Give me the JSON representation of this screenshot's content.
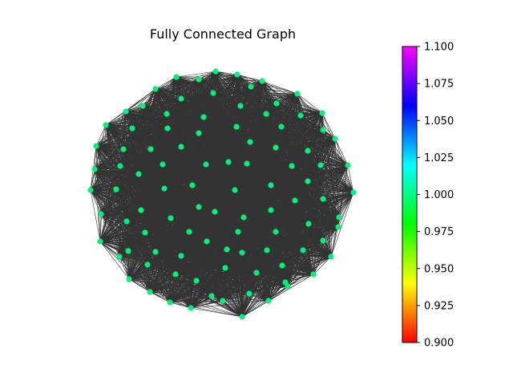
{
  "title": "Fully Connected Graph",
  "node_color": "#00f07a",
  "edge_color": "#333333",
  "colorbar": {
    "min": 0.9,
    "max": 1.1,
    "ticks": [
      "1.100",
      "1.075",
      "1.050",
      "1.025",
      "1.000",
      "0.975",
      "0.950",
      "0.925",
      "0.900"
    ],
    "colormap_stops": [
      "#ff0000",
      "#ffff00",
      "#00ff00",
      "#00ffff",
      "#0000ff",
      "#ff00ff"
    ]
  },
  "chart_data": {
    "type": "scatter",
    "title": "Fully Connected Graph",
    "graph": "complete",
    "node_count": 100,
    "node_value": 1.0,
    "color_scale_range": [
      0.9,
      1.1
    ]
  }
}
